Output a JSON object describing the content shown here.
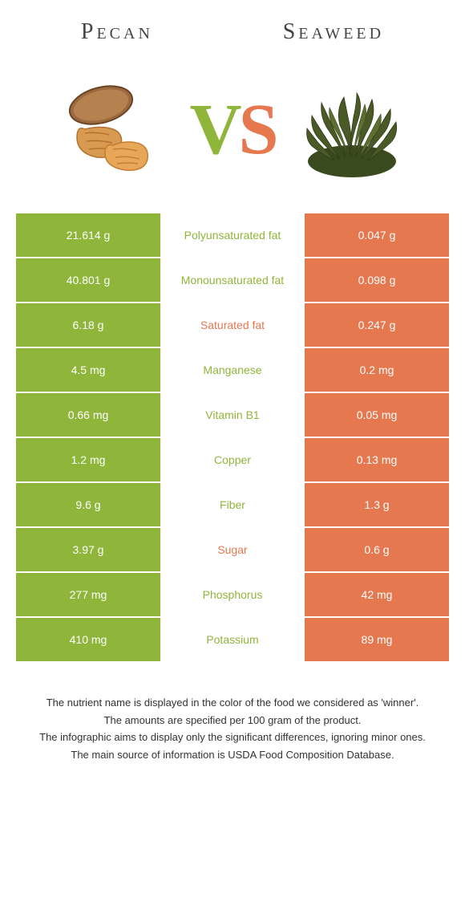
{
  "colors": {
    "left": "#8fb53a",
    "right": "#e67850",
    "left_text_on_white": "#8fb53a",
    "right_text_on_white": "#e67850",
    "title": "#444444",
    "footnote": "#333333",
    "background": "#ffffff"
  },
  "foods": {
    "left": "Pecan",
    "right": "Seaweed"
  },
  "vs": {
    "v": "V",
    "s": "S"
  },
  "rows": [
    {
      "label": "Polyunsaturated fat",
      "left": "21.614 g",
      "right": "0.047 g",
      "winner": "left"
    },
    {
      "label": "Monounsaturated fat",
      "left": "40.801 g",
      "right": "0.098 g",
      "winner": "left"
    },
    {
      "label": "Saturated fat",
      "left": "6.18 g",
      "right": "0.247 g",
      "winner": "right"
    },
    {
      "label": "Manganese",
      "left": "4.5 mg",
      "right": "0.2 mg",
      "winner": "left"
    },
    {
      "label": "Vitamin B1",
      "left": "0.66 mg",
      "right": "0.05 mg",
      "winner": "left"
    },
    {
      "label": "Copper",
      "left": "1.2 mg",
      "right": "0.13 mg",
      "winner": "left"
    },
    {
      "label": "Fiber",
      "left": "9.6 g",
      "right": "1.3 g",
      "winner": "left"
    },
    {
      "label": "Sugar",
      "left": "3.97 g",
      "right": "0.6 g",
      "winner": "right"
    },
    {
      "label": "Phosphorus",
      "left": "277 mg",
      "right": "42 mg",
      "winner": "left"
    },
    {
      "label": "Potassium",
      "left": "410 mg",
      "right": "89 mg",
      "winner": "left"
    }
  ],
  "footnotes": [
    "The nutrient name is displayed in the color of the food we considered as 'winner'.",
    "The amounts are specified per 100 gram of the product.",
    "The infographic aims to display only the significant differences, ignoring minor ones.",
    "The main source of information is USDA Food Composition Database."
  ]
}
